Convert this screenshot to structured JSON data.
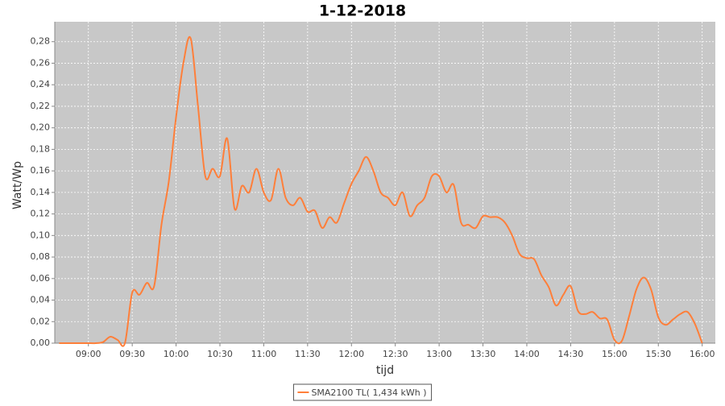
{
  "chart_data": {
    "type": "line",
    "title": "1-12-2018",
    "x_label": "tijd",
    "y_label": "Watt/Wp",
    "x": [
      "08:40",
      "08:45",
      "08:50",
      "08:55",
      "09:00",
      "09:05",
      "09:10",
      "09:15",
      "09:20",
      "09:25",
      "09:30",
      "09:35",
      "09:40",
      "09:45",
      "09:50",
      "09:55",
      "10:00",
      "10:05",
      "10:10",
      "10:15",
      "10:20",
      "10:25",
      "10:30",
      "10:35",
      "10:40",
      "10:45",
      "10:50",
      "10:55",
      "11:00",
      "11:05",
      "11:10",
      "11:15",
      "11:20",
      "11:25",
      "11:30",
      "11:35",
      "11:40",
      "11:45",
      "11:50",
      "11:55",
      "12:00",
      "12:05",
      "12:10",
      "12:15",
      "12:20",
      "12:25",
      "12:30",
      "12:35",
      "12:40",
      "12:45",
      "12:50",
      "12:55",
      "13:00",
      "13:05",
      "13:10",
      "13:15",
      "13:20",
      "13:25",
      "13:30",
      "13:35",
      "13:40",
      "13:45",
      "13:50",
      "13:55",
      "14:00",
      "14:05",
      "14:10",
      "14:15",
      "14:20",
      "14:25",
      "14:30",
      "14:35",
      "14:40",
      "14:45",
      "14:50",
      "14:55",
      "15:00",
      "15:05",
      "15:10",
      "15:15",
      "15:20",
      "15:25",
      "15:30",
      "15:35",
      "15:40",
      "15:45",
      "15:50",
      "15:55",
      "16:00"
    ],
    "series": [
      {
        "name": "SMA2100 TL( 1,434 kWh )",
        "color": "#ff7f3a",
        "values": [
          0,
          0,
          0,
          0,
          0,
          0,
          0.001,
          0.006,
          0.003,
          0,
          0.047,
          0.045,
          0.056,
          0.053,
          0.11,
          0.15,
          0.21,
          0.26,
          0.283,
          0.22,
          0.155,
          0.162,
          0.155,
          0.19,
          0.125,
          0.146,
          0.14,
          0.162,
          0.14,
          0.133,
          0.162,
          0.135,
          0.128,
          0.135,
          0.122,
          0.123,
          0.107,
          0.117,
          0.112,
          0.13,
          0.148,
          0.16,
          0.173,
          0.16,
          0.14,
          0.135,
          0.128,
          0.14,
          0.118,
          0.128,
          0.135,
          0.155,
          0.155,
          0.14,
          0.147,
          0.112,
          0.11,
          0.107,
          0.118,
          0.117,
          0.117,
          0.112,
          0.1,
          0.083,
          0.079,
          0.078,
          0.063,
          0.052,
          0.035,
          0.045,
          0.053,
          0.03,
          0.027,
          0.029,
          0.023,
          0.022,
          0.003,
          0.002,
          0.025,
          0.05,
          0.061,
          0.05,
          0.024,
          0.017,
          0.022,
          0.027,
          0.029,
          0.018,
          0
        ]
      }
    ],
    "xlim": [
      "08:37",
      "16:09"
    ],
    "xticks": [
      "09:00",
      "09:30",
      "10:00",
      "10:30",
      "11:00",
      "11:30",
      "12:00",
      "12:30",
      "13:00",
      "13:30",
      "14:00",
      "14:30",
      "15:00",
      "15:30",
      "16:00"
    ],
    "ylim": [
      0,
      0.2985
    ],
    "yticks": [
      {
        "value": 0,
        "label": "0,00"
      },
      {
        "value": 0.02,
        "label": "0,02"
      },
      {
        "value": 0.04,
        "label": "0,04"
      },
      {
        "value": 0.06,
        "label": "0,06"
      },
      {
        "value": 0.08,
        "label": "0,08"
      },
      {
        "value": 0.1,
        "label": "0,10"
      },
      {
        "value": 0.12,
        "label": "0,12"
      },
      {
        "value": 0.14,
        "label": "0,14"
      },
      {
        "value": 0.16,
        "label": "0,16"
      },
      {
        "value": 0.18,
        "label": "0,18"
      },
      {
        "value": 0.2,
        "label": "0,20"
      },
      {
        "value": 0.22,
        "label": "0,22"
      },
      {
        "value": 0.24,
        "label": "0,24"
      },
      {
        "value": 0.26,
        "label": "0,26"
      },
      {
        "value": 0.28,
        "label": "0,28"
      }
    ],
    "grid": true,
    "plot_background": "#c8c8c8",
    "legend": "bottom"
  }
}
